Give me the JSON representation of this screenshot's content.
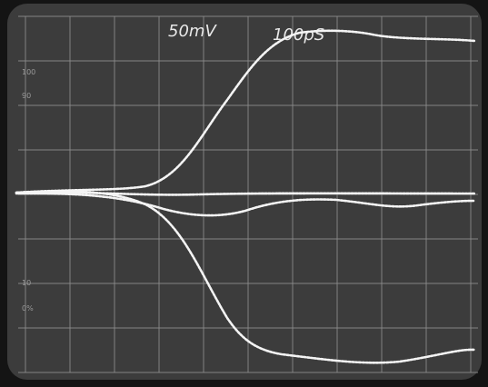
{
  "screen": {
    "volts_per_div": "50mV",
    "time_per_div": "100pS",
    "percent_marks": [
      "100",
      "90",
      "10",
      "0%"
    ]
  }
}
